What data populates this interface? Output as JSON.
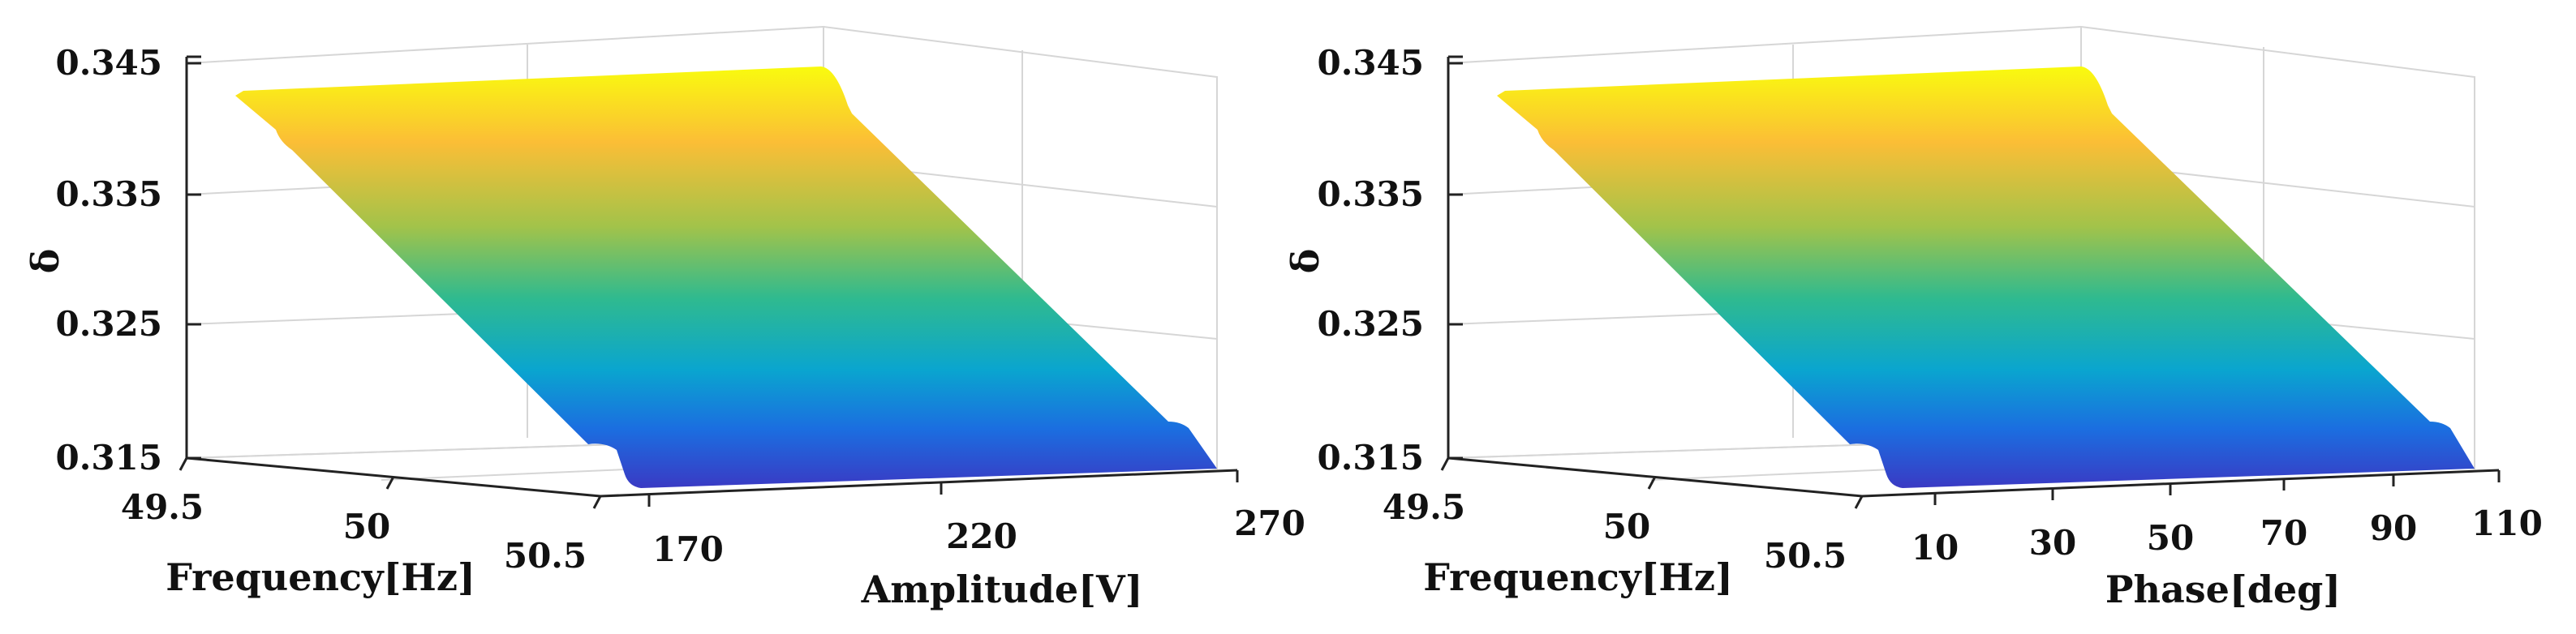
{
  "chart_data": [
    {
      "type": "surface3d",
      "x": {
        "label": "Frequency[Hz]",
        "range": [
          49.5,
          50.5
        ],
        "ticks": [
          "49.5",
          "50",
          "50.5"
        ]
      },
      "y": {
        "label": "Amplitude[V]",
        "range": [
          170,
          270
        ],
        "ticks": [
          "170",
          "220",
          "270"
        ]
      },
      "z": {
        "label": "δ",
        "range": [
          0.315,
          0.345
        ],
        "ticks": [
          "0.315",
          "0.325",
          "0.335",
          "0.345"
        ]
      },
      "surface": {
        "description_values": {
          "z_at_frequency_49_5": 0.3425,
          "z_at_frequency_50_5": 0.317
        },
        "colormap": "parula"
      },
      "grid": true
    },
    {
      "type": "surface3d",
      "x": {
        "label": "Frequency[Hz]",
        "range": [
          49.5,
          50.5
        ],
        "ticks": [
          "49.5",
          "50",
          "50.5"
        ]
      },
      "y": {
        "label": "Phase[deg]",
        "range": [
          0,
          110
        ],
        "ticks": [
          "10",
          "30",
          "50",
          "70",
          "90",
          "110"
        ]
      },
      "z": {
        "label": "δ",
        "range": [
          0.315,
          0.345
        ],
        "ticks": [
          "0.315",
          "0.325",
          "0.335",
          "0.345"
        ]
      },
      "surface": {
        "description_values": {
          "z_at_frequency_49_5": 0.3425,
          "z_at_frequency_50_5": 0.317
        },
        "colormap": "parula"
      },
      "grid": true
    }
  ]
}
